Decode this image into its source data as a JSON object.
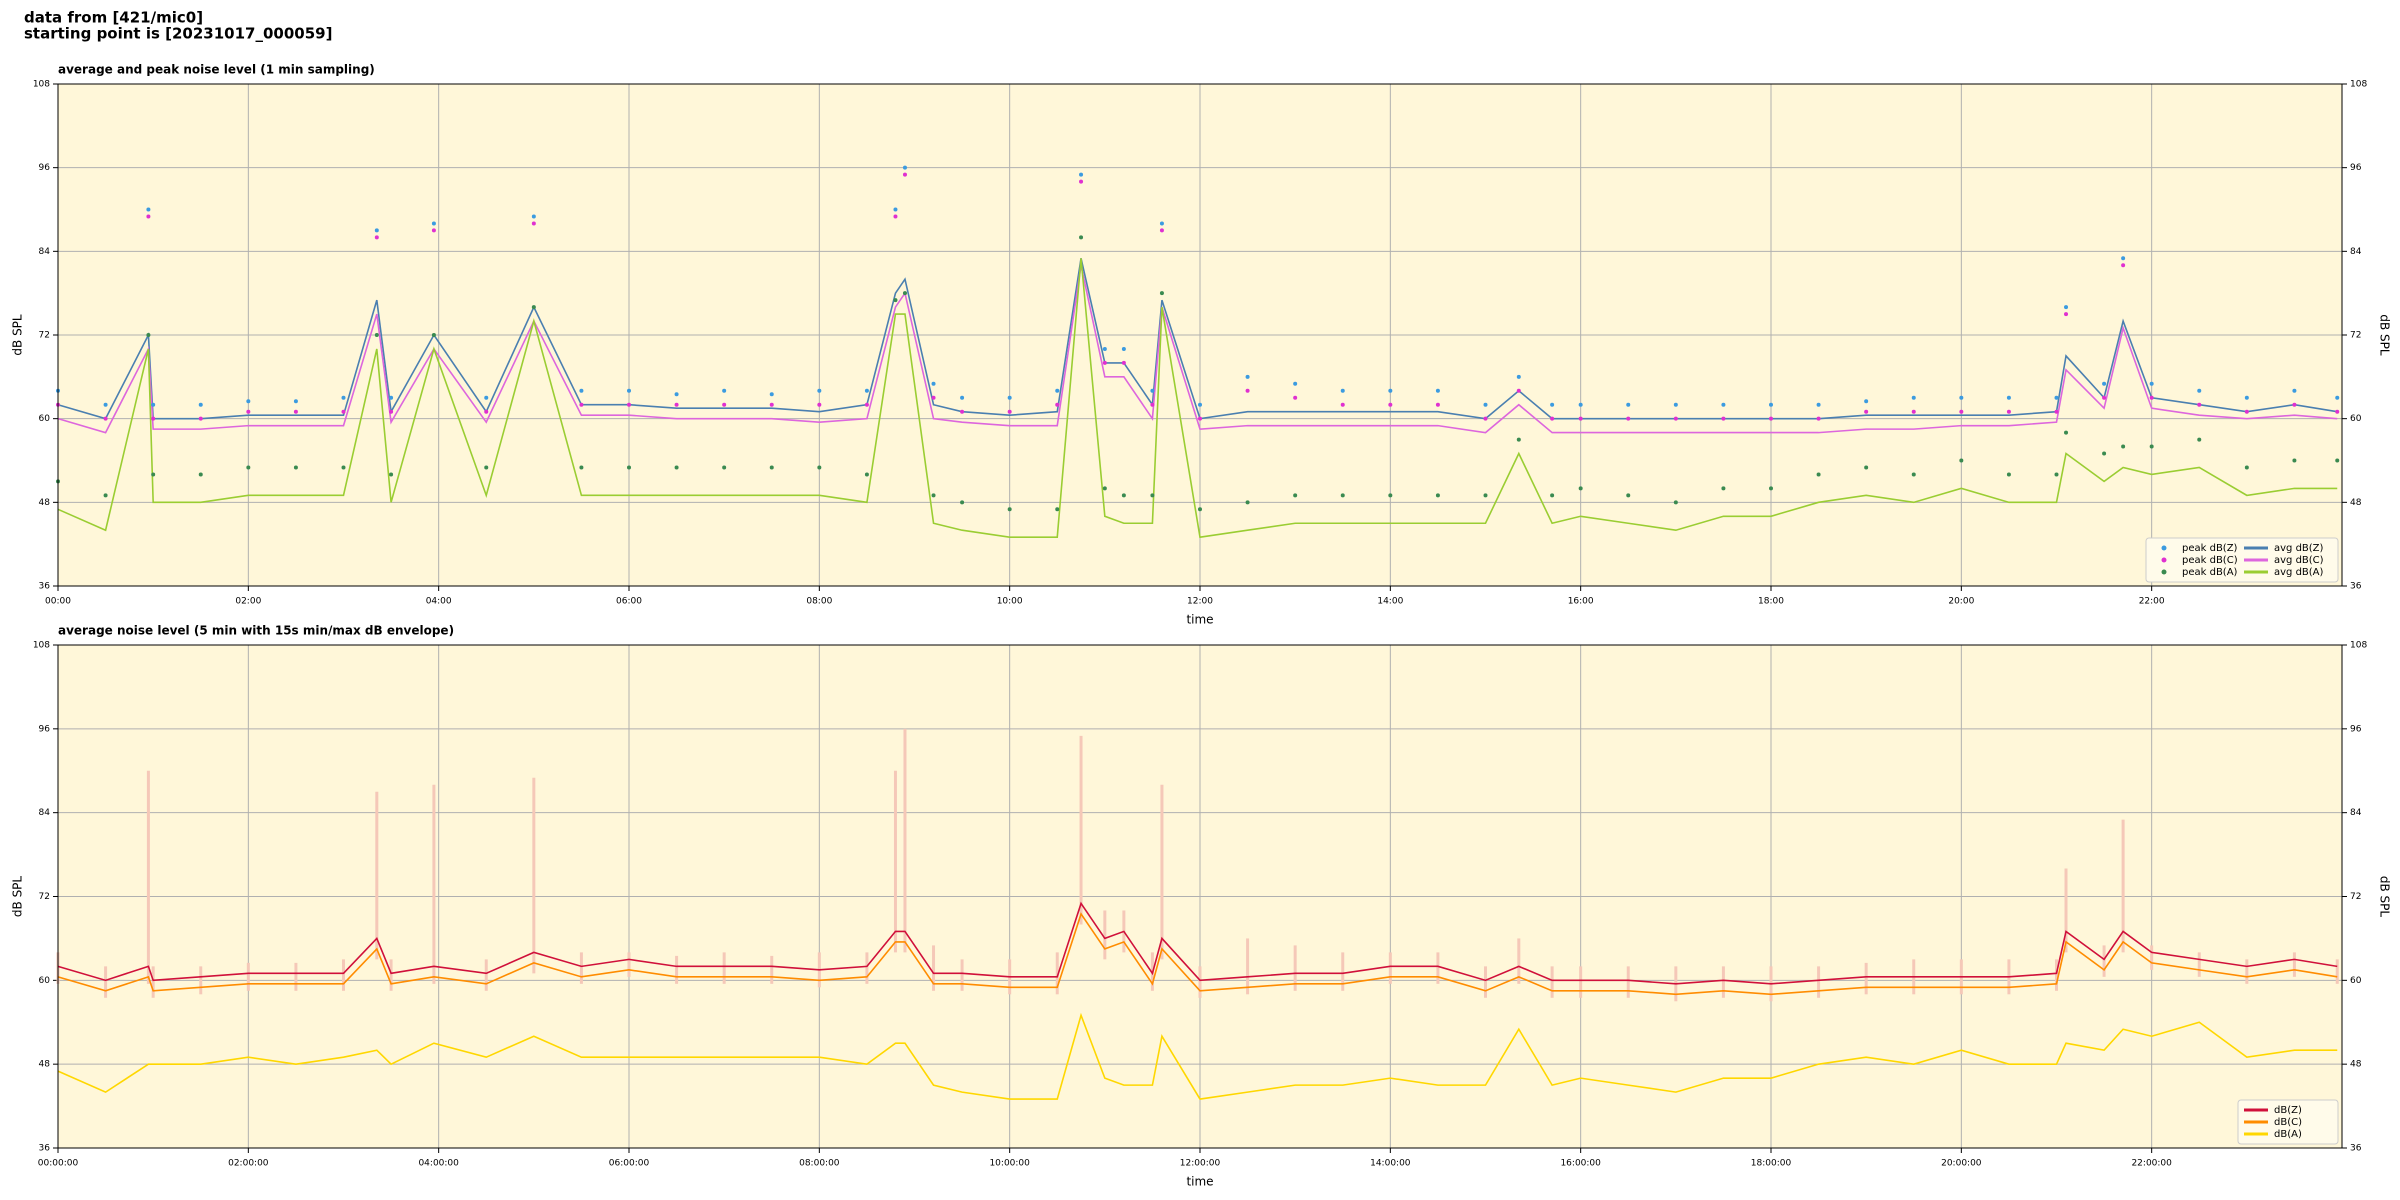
{
  "title": [
    "data from [421/mic0]",
    "starting point is [20231017_000059]"
  ],
  "chart_data": [
    {
      "type": "line",
      "title": "average and peak noise level (1 min sampling)",
      "xlabel": "time",
      "ylabel": "dB SPL",
      "xlim": [
        0,
        24
      ],
      "xticks": [
        {
          "value": 0,
          "label": "00:00"
        },
        {
          "value": 2,
          "label": "02:00"
        },
        {
          "value": 4,
          "label": "04:00"
        },
        {
          "value": 6,
          "label": "06:00"
        },
        {
          "value": 8,
          "label": "08:00"
        },
        {
          "value": 10,
          "label": "10:00"
        },
        {
          "value": 12,
          "label": "12:00"
        },
        {
          "value": 14,
          "label": "14:00"
        },
        {
          "value": 16,
          "label": "16:00"
        },
        {
          "value": 18,
          "label": "18:00"
        },
        {
          "value": 20,
          "label": "20:00"
        },
        {
          "value": 22,
          "label": "22:00"
        }
      ],
      "ylim": [
        36,
        108
      ],
      "yticks": [
        36,
        48,
        60,
        72,
        84,
        96,
        108
      ],
      "grid": true,
      "legend": "lower right",
      "legend_columns": 2,
      "x": [
        0,
        0.5,
        0.95,
        1,
        1.5,
        2,
        2.5,
        3,
        3.35,
        3.5,
        3.95,
        4.5,
        5,
        5.5,
        6,
        6.5,
        7,
        7.5,
        8,
        8.5,
        8.8,
        8.9,
        9.2,
        9.5,
        10,
        10.5,
        10.75,
        11,
        11.2,
        11.5,
        11.6,
        12,
        12.5,
        13,
        13.5,
        14,
        14.5,
        15,
        15.35,
        15.7,
        16,
        16.5,
        17,
        17.5,
        18,
        18.5,
        19,
        19.5,
        20,
        20.5,
        21,
        21.1,
        21.5,
        21.7,
        22,
        22.5,
        23,
        23.5,
        23.95
      ],
      "series": [
        {
          "name": "peak dB(Z)",
          "kind": "points",
          "color": "#3b9be0",
          "values": [
            64,
            62,
            90,
            62,
            62,
            62.5,
            62.5,
            63,
            87,
            63,
            88,
            63,
            89,
            64,
            64,
            63.5,
            64,
            63.5,
            64,
            64,
            90,
            96,
            65,
            63,
            63,
            64,
            95,
            70,
            70,
            64,
            88,
            62,
            66,
            65,
            64,
            64,
            64,
            62,
            66,
            62,
            62,
            62,
            62,
            62,
            62,
            62,
            62.5,
            63,
            63,
            63,
            63,
            76,
            65,
            83,
            65,
            64,
            63,
            64,
            63
          ]
        },
        {
          "name": "peak dB(C)",
          "kind": "points",
          "color": "#e030d0",
          "values": [
            62,
            60,
            89,
            60,
            60,
            61,
            61,
            61,
            86,
            61,
            87,
            61,
            88,
            62,
            62,
            62,
            62,
            62,
            62,
            62,
            89,
            95,
            63,
            61,
            61,
            62,
            94,
            68,
            68,
            62,
            87,
            60,
            64,
            63,
            62,
            62,
            62,
            60,
            64,
            60,
            60,
            60,
            60,
            60,
            60,
            60,
            61,
            61,
            61,
            61,
            61,
            75,
            63,
            82,
            63,
            62,
            61,
            62,
            61
          ]
        },
        {
          "name": "peak dB(A)",
          "kind": "points",
          "color": "#3a8a50",
          "values": [
            51,
            49,
            72,
            52,
            52,
            53,
            53,
            53,
            72,
            52,
            72,
            53,
            76,
            53,
            53,
            53,
            53,
            53,
            53,
            52,
            77,
            78,
            49,
            48,
            47,
            47,
            86,
            50,
            49,
            49,
            78,
            47,
            48,
            49,
            49,
            49,
            49,
            49,
            57,
            49,
            50,
            49,
            48,
            50,
            50,
            52,
            53,
            52,
            54,
            52,
            52,
            58,
            55,
            56,
            56,
            57,
            53,
            54,
            54
          ]
        },
        {
          "name": "avg dB(Z)",
          "kind": "line",
          "color": "#4a7fb0",
          "values": [
            62,
            60,
            72,
            60,
            60,
            60.5,
            60.5,
            60.5,
            77,
            61,
            72,
            61,
            76,
            62,
            62,
            61.5,
            61.5,
            61.5,
            61,
            62,
            78,
            80,
            62,
            61,
            60.5,
            61,
            83,
            68,
            68,
            62,
            77,
            60,
            61,
            61,
            61,
            61,
            61,
            60,
            64,
            60,
            60,
            60,
            60,
            60,
            60,
            60,
            60.5,
            60.5,
            60.5,
            60.5,
            61,
            69,
            63,
            74,
            63,
            62,
            61,
            62,
            61
          ]
        },
        {
          "name": "avg dB(C)",
          "kind": "line",
          "color": "#dd66dd",
          "values": [
            60,
            58,
            70,
            58.5,
            58.5,
            59,
            59,
            59,
            75,
            59.5,
            70,
            59.5,
            74,
            60.5,
            60.5,
            60,
            60,
            60,
            59.5,
            60,
            76,
            78,
            60,
            59.5,
            59,
            59,
            82,
            66,
            66,
            60,
            76,
            58.5,
            59,
            59,
            59,
            59,
            59,
            58,
            62,
            58,
            58,
            58,
            58,
            58,
            58,
            58,
            58.5,
            58.5,
            59,
            59,
            59.5,
            67,
            61.5,
            73,
            61.5,
            60.5,
            60,
            60.5,
            60
          ]
        },
        {
          "name": "avg dB(A)",
          "kind": "line",
          "color": "#9acd32",
          "values": [
            47,
            44,
            70,
            48,
            48,
            49,
            49,
            49,
            70,
            48,
            70,
            49,
            74,
            49,
            49,
            49,
            49,
            49,
            49,
            48,
            75,
            75,
            45,
            44,
            43,
            43,
            83,
            46,
            45,
            45,
            76,
            43,
            44,
            45,
            45,
            45,
            45,
            45,
            55,
            45,
            46,
            45,
            44,
            46,
            46,
            48,
            49,
            48,
            50,
            48,
            48,
            55,
            51,
            53,
            52,
            53,
            49,
            50,
            50
          ]
        }
      ]
    },
    {
      "type": "line",
      "title": "average noise level (5 min with 15s min/max dB envelope)",
      "xlabel": "time",
      "ylabel": "dB SPL",
      "xlim": [
        0,
        24
      ],
      "xticks": [
        {
          "value": 0,
          "label": "00:00:00"
        },
        {
          "value": 2,
          "label": "02:00:00"
        },
        {
          "value": 4,
          "label": "04:00:00"
        },
        {
          "value": 6,
          "label": "06:00:00"
        },
        {
          "value": 8,
          "label": "08:00:00"
        },
        {
          "value": 10,
          "label": "10:00:00"
        },
        {
          "value": 12,
          "label": "12:00:00"
        },
        {
          "value": 14,
          "label": "14:00:00"
        },
        {
          "value": 16,
          "label": "16:00:00"
        },
        {
          "value": 18,
          "label": "18:00:00"
        },
        {
          "value": 20,
          "label": "20:00:00"
        },
        {
          "value": 22,
          "label": "22:00:00"
        }
      ],
      "ylim": [
        36,
        108
      ],
      "yticks": [
        36,
        48,
        60,
        72,
        84,
        96,
        108
      ],
      "grid": true,
      "legend": "lower right",
      "legend_columns": 1,
      "x": [
        0,
        0.5,
        0.95,
        1,
        1.5,
        2,
        2.5,
        3,
        3.35,
        3.5,
        3.95,
        4.5,
        5,
        5.5,
        6,
        6.5,
        7,
        7.5,
        8,
        8.5,
        8.8,
        8.9,
        9.2,
        9.5,
        10,
        10.5,
        10.75,
        11,
        11.2,
        11.5,
        11.6,
        12,
        12.5,
        13,
        13.5,
        14,
        14.5,
        15,
        15.35,
        15.7,
        16,
        16.5,
        17,
        17.5,
        18,
        18.5,
        19,
        19.5,
        20,
        20.5,
        21,
        21.1,
        21.5,
        21.7,
        22,
        22.5,
        23,
        23.5,
        23.95
      ],
      "envelope": {
        "color": "#f5c8b8",
        "min": [
          59.5,
          57.5,
          59.5,
          57.5,
          58,
          58.5,
          58.5,
          58.5,
          63,
          58.5,
          59.5,
          58.5,
          61,
          59.5,
          60.5,
          59.5,
          59.5,
          59.5,
          59,
          59.5,
          64,
          64,
          58.5,
          58.5,
          58,
          58,
          68,
          63,
          64,
          58.5,
          63,
          57.5,
          58,
          58.5,
          58.5,
          59.5,
          59.5,
          57.5,
          59.5,
          57.5,
          57.5,
          57.5,
          57,
          57.5,
          57,
          57.5,
          58,
          58,
          58,
          58,
          58.5,
          64,
          60.5,
          64,
          61.5,
          60.5,
          59.5,
          60.5,
          59.5
        ],
        "max": [
          64,
          62,
          90,
          62,
          62,
          62.5,
          62.5,
          63,
          87,
          63,
          88,
          63,
          89,
          64,
          64,
          63.5,
          64,
          63.5,
          64,
          64,
          90,
          96,
          65,
          63,
          63,
          64,
          95,
          70,
          70,
          64,
          88,
          62,
          66,
          65,
          64,
          64,
          64,
          62,
          66,
          62,
          62,
          62,
          62,
          62,
          62,
          62,
          62.5,
          63,
          63,
          63,
          63,
          76,
          65,
          83,
          65,
          64,
          63,
          64,
          63
        ]
      },
      "series": [
        {
          "name": "dB(Z)",
          "kind": "line",
          "color": "#d0103a",
          "values": [
            62,
            60,
            62,
            60,
            60.5,
            61,
            61,
            61,
            66,
            61,
            62,
            61,
            64,
            62,
            63,
            62,
            62,
            62,
            61.5,
            62,
            67,
            67,
            61,
            61,
            60.5,
            60.5,
            71,
            66,
            67,
            61,
            66,
            60,
            60.5,
            61,
            61,
            62,
            62,
            60,
            62,
            60,
            60,
            60,
            59.5,
            60,
            59.5,
            60,
            60.5,
            60.5,
            60.5,
            60.5,
            61,
            67,
            63,
            67,
            64,
            63,
            62,
            63,
            62
          ]
        },
        {
          "name": "dB(C)",
          "kind": "line",
          "color": "#ff8c00",
          "values": [
            60.5,
            58.5,
            60.5,
            58.5,
            59,
            59.5,
            59.5,
            59.5,
            64.5,
            59.5,
            60.5,
            59.5,
            62.5,
            60.5,
            61.5,
            60.5,
            60.5,
            60.5,
            60,
            60.5,
            65.5,
            65.5,
            59.5,
            59.5,
            59,
            59,
            69.5,
            64.5,
            65.5,
            59.5,
            64.5,
            58.5,
            59,
            59.5,
            59.5,
            60.5,
            60.5,
            58.5,
            60.5,
            58.5,
            58.5,
            58.5,
            58,
            58.5,
            58,
            58.5,
            59,
            59,
            59,
            59,
            59.5,
            65.5,
            61.5,
            65.5,
            62.5,
            61.5,
            60.5,
            61.5,
            60.5
          ]
        },
        {
          "name": "dB(A)",
          "kind": "line",
          "color": "#ffd700",
          "values": [
            47,
            44,
            48,
            48,
            48,
            49,
            48,
            49,
            50,
            48,
            51,
            49,
            52,
            49,
            49,
            49,
            49,
            49,
            49,
            48,
            51,
            51,
            45,
            44,
            43,
            43,
            55,
            46,
            45,
            45,
            52,
            43,
            44,
            45,
            45,
            46,
            45,
            45,
            53,
            45,
            46,
            45,
            44,
            46,
            46,
            48,
            49,
            48,
            50,
            48,
            48,
            51,
            50,
            53,
            52,
            54,
            49,
            50,
            50
          ]
        }
      ]
    }
  ]
}
